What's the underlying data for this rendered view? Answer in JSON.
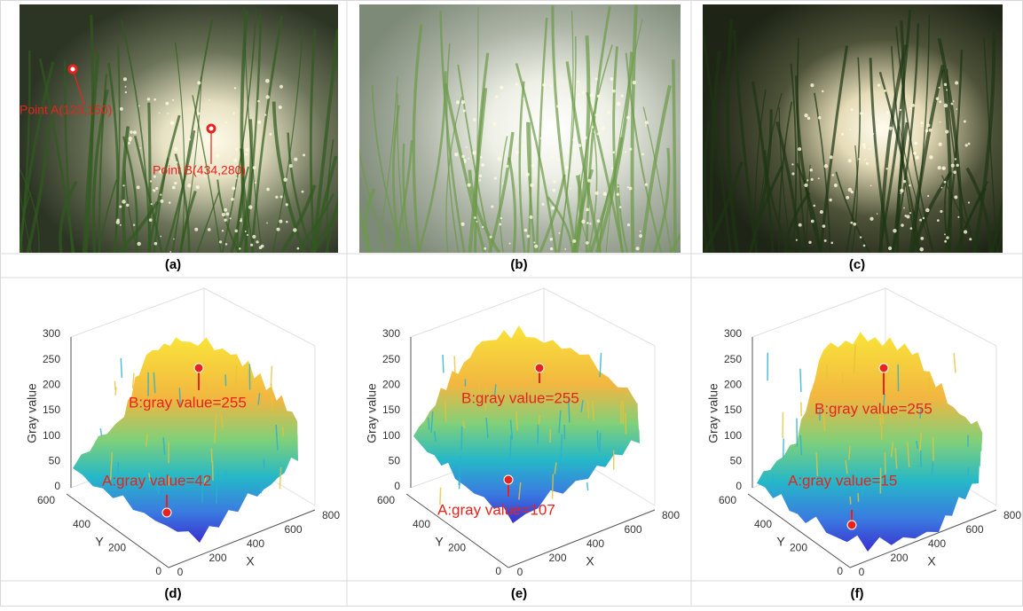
{
  "images": [
    {
      "caption": "(a)",
      "annotations": [
        "Point A(123,150)",
        "Point B(434,280)"
      ]
    },
    {
      "caption": "(b)",
      "annotations": []
    },
    {
      "caption": "(c)",
      "annotations": []
    }
  ],
  "plots": [
    {
      "caption": "(d)",
      "z_label": "Gray value",
      "x_label": "X",
      "y_label": "Y",
      "z_ticks": [
        0,
        50,
        100,
        150,
        200,
        250,
        300
      ],
      "y_ticks": [
        0,
        200,
        400,
        600
      ],
      "x_ticks": [
        0,
        200,
        400,
        600,
        800
      ],
      "annotations": [
        "B:gray value=255",
        "A:gray value=42"
      ]
    },
    {
      "caption": "(e)",
      "z_label": "Gray value",
      "x_label": "X",
      "y_label": "Y",
      "z_ticks": [
        0,
        50,
        100,
        150,
        200,
        250,
        300
      ],
      "y_ticks": [
        0,
        200,
        400,
        600
      ],
      "x_ticks": [
        0,
        200,
        400,
        600,
        800
      ],
      "annotations": [
        "B:gray value=255",
        "A:gray value=107"
      ]
    },
    {
      "caption": "(f)",
      "z_label": "Gray value",
      "x_label": "X",
      "y_label": "Y",
      "z_ticks": [
        0,
        50,
        100,
        150,
        200,
        250,
        300
      ],
      "y_ticks": [
        0,
        200,
        400,
        600
      ],
      "x_ticks": [
        0,
        200,
        400,
        600,
        800
      ],
      "annotations": [
        "B:gray value=255",
        "A:gray value=15"
      ]
    }
  ]
}
